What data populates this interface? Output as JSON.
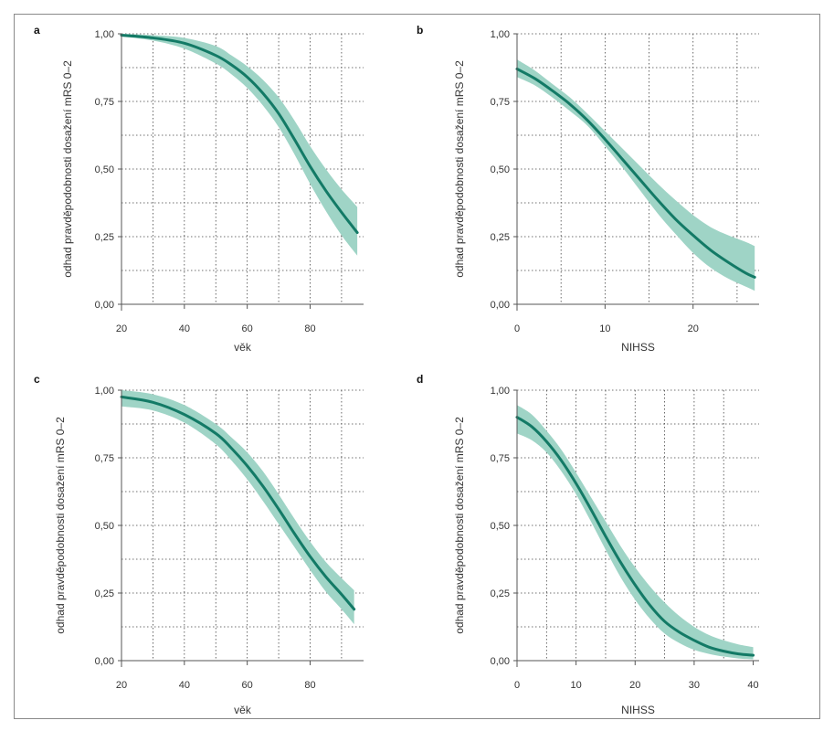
{
  "colors": {
    "curve": "#137a66",
    "band": "#9fd4c6"
  },
  "chart_data": [
    {
      "type": "line",
      "panel_label": "a",
      "xlabel": "věk",
      "ylabel": "odhad pravděpodobnosti dosažení mRS 0–2",
      "xlim": [
        20,
        97
      ],
      "ylim": [
        0,
        1
      ],
      "xticks": [
        20,
        40,
        60,
        80
      ],
      "xtick_labels": [
        "20",
        "40",
        "60",
        "80"
      ],
      "xgrid": [
        30,
        40,
        50,
        60,
        70,
        80,
        90
      ],
      "yticks": [
        0,
        0.25,
        0.5,
        0.75,
        1
      ],
      "ytick_labels": [
        "0,00",
        "0,25",
        "0,50",
        "0,75",
        "1,00"
      ],
      "grid": true,
      "series": [
        {
          "x": [
            20,
            30,
            40,
            50,
            55,
            60,
            65,
            70,
            75,
            80,
            85,
            90,
            95
          ],
          "y": [
            0.995,
            0.985,
            0.965,
            0.92,
            0.885,
            0.84,
            0.78,
            0.705,
            0.61,
            0.51,
            0.42,
            0.34,
            0.265
          ],
          "lower": [
            0.99,
            0.975,
            0.945,
            0.89,
            0.85,
            0.8,
            0.735,
            0.655,
            0.555,
            0.445,
            0.345,
            0.255,
            0.18
          ],
          "upper": [
            1.0,
            0.995,
            0.985,
            0.955,
            0.92,
            0.88,
            0.83,
            0.765,
            0.68,
            0.585,
            0.5,
            0.425,
            0.36
          ]
        }
      ]
    },
    {
      "type": "line",
      "panel_label": "b",
      "xlabel": "NIHSS",
      "ylabel": "odhad pravděpodobnosti dosažení mRS 0–2",
      "xlim": [
        0,
        27.5
      ],
      "ylim": [
        0,
        1
      ],
      "xticks": [
        0,
        10,
        20
      ],
      "xtick_labels": [
        "0",
        "10",
        "20"
      ],
      "xgrid": [
        5,
        10,
        15,
        20,
        25
      ],
      "yticks": [
        0,
        0.25,
        0.5,
        0.75,
        1
      ],
      "ytick_labels": [
        "0,00",
        "0,25",
        "0,50",
        "0,75",
        "1,00"
      ],
      "grid": true,
      "series": [
        {
          "x": [
            0,
            2,
            4,
            6,
            8,
            10,
            12,
            14,
            16,
            18,
            20,
            22,
            24,
            26,
            27
          ],
          "y": [
            0.87,
            0.835,
            0.79,
            0.74,
            0.68,
            0.61,
            0.535,
            0.46,
            0.385,
            0.315,
            0.255,
            0.2,
            0.155,
            0.115,
            0.1
          ],
          "lower": [
            0.84,
            0.81,
            0.765,
            0.715,
            0.66,
            0.585,
            0.505,
            0.42,
            0.335,
            0.26,
            0.19,
            0.135,
            0.095,
            0.065,
            0.05
          ],
          "upper": [
            0.905,
            0.865,
            0.815,
            0.765,
            0.705,
            0.64,
            0.575,
            0.51,
            0.445,
            0.385,
            0.33,
            0.285,
            0.255,
            0.23,
            0.215
          ]
        }
      ]
    },
    {
      "type": "line",
      "panel_label": "c",
      "xlabel": "věk",
      "ylabel": "odhad pravděpodobnosti dosažení mRS 0–2",
      "xlim": [
        20,
        97
      ],
      "ylim": [
        0,
        1
      ],
      "xticks": [
        20,
        40,
        60,
        80
      ],
      "xtick_labels": [
        "20",
        "40",
        "60",
        "80"
      ],
      "xgrid": [
        30,
        40,
        50,
        60,
        70,
        80,
        90
      ],
      "yticks": [
        0,
        0.25,
        0.5,
        0.75,
        1
      ],
      "ytick_labels": [
        "0,00",
        "0,25",
        "0,50",
        "0,75",
        "1,00"
      ],
      "grid": true,
      "series": [
        {
          "x": [
            20,
            30,
            40,
            50,
            55,
            60,
            65,
            70,
            75,
            80,
            85,
            90,
            94
          ],
          "y": [
            0.975,
            0.955,
            0.91,
            0.84,
            0.785,
            0.72,
            0.645,
            0.56,
            0.47,
            0.385,
            0.31,
            0.245,
            0.19
          ],
          "lower": [
            0.94,
            0.925,
            0.88,
            0.8,
            0.74,
            0.67,
            0.59,
            0.505,
            0.42,
            0.335,
            0.255,
            0.19,
            0.135
          ],
          "upper": [
            1.0,
            0.985,
            0.945,
            0.875,
            0.825,
            0.77,
            0.7,
            0.615,
            0.525,
            0.44,
            0.365,
            0.305,
            0.26
          ]
        }
      ]
    },
    {
      "type": "line",
      "panel_label": "d",
      "xlabel": "NIHSS",
      "ylabel": "odhad pravděpodobnosti dosažení mRS 0–2",
      "xlim": [
        0,
        41
      ],
      "ylim": [
        0,
        1
      ],
      "xticks": [
        0,
        10,
        20,
        30,
        40
      ],
      "xtick_labels": [
        "0",
        "10",
        "20",
        "30",
        "40"
      ],
      "xgrid": [
        5,
        10,
        15,
        20,
        25,
        30,
        35
      ],
      "yticks": [
        0,
        0.25,
        0.5,
        0.75,
        1
      ],
      "ytick_labels": [
        "0,00",
        "0,25",
        "0,50",
        "0,75",
        "1,00"
      ],
      "grid": true,
      "series": [
        {
          "x": [
            0,
            2.5,
            5,
            7.5,
            10,
            12.5,
            15,
            17.5,
            20,
            22.5,
            25,
            27.5,
            30,
            32.5,
            35,
            37.5,
            40
          ],
          "y": [
            0.9,
            0.865,
            0.81,
            0.74,
            0.655,
            0.56,
            0.46,
            0.365,
            0.28,
            0.205,
            0.145,
            0.105,
            0.075,
            0.05,
            0.035,
            0.025,
            0.02
          ],
          "lower": [
            0.84,
            0.815,
            0.77,
            0.7,
            0.615,
            0.515,
            0.41,
            0.31,
            0.225,
            0.155,
            0.1,
            0.065,
            0.04,
            0.025,
            0.015,
            0.008,
            0.005
          ],
          "upper": [
            0.945,
            0.91,
            0.85,
            0.78,
            0.695,
            0.605,
            0.515,
            0.425,
            0.345,
            0.275,
            0.215,
            0.165,
            0.125,
            0.095,
            0.075,
            0.06,
            0.05
          ]
        }
      ]
    }
  ]
}
